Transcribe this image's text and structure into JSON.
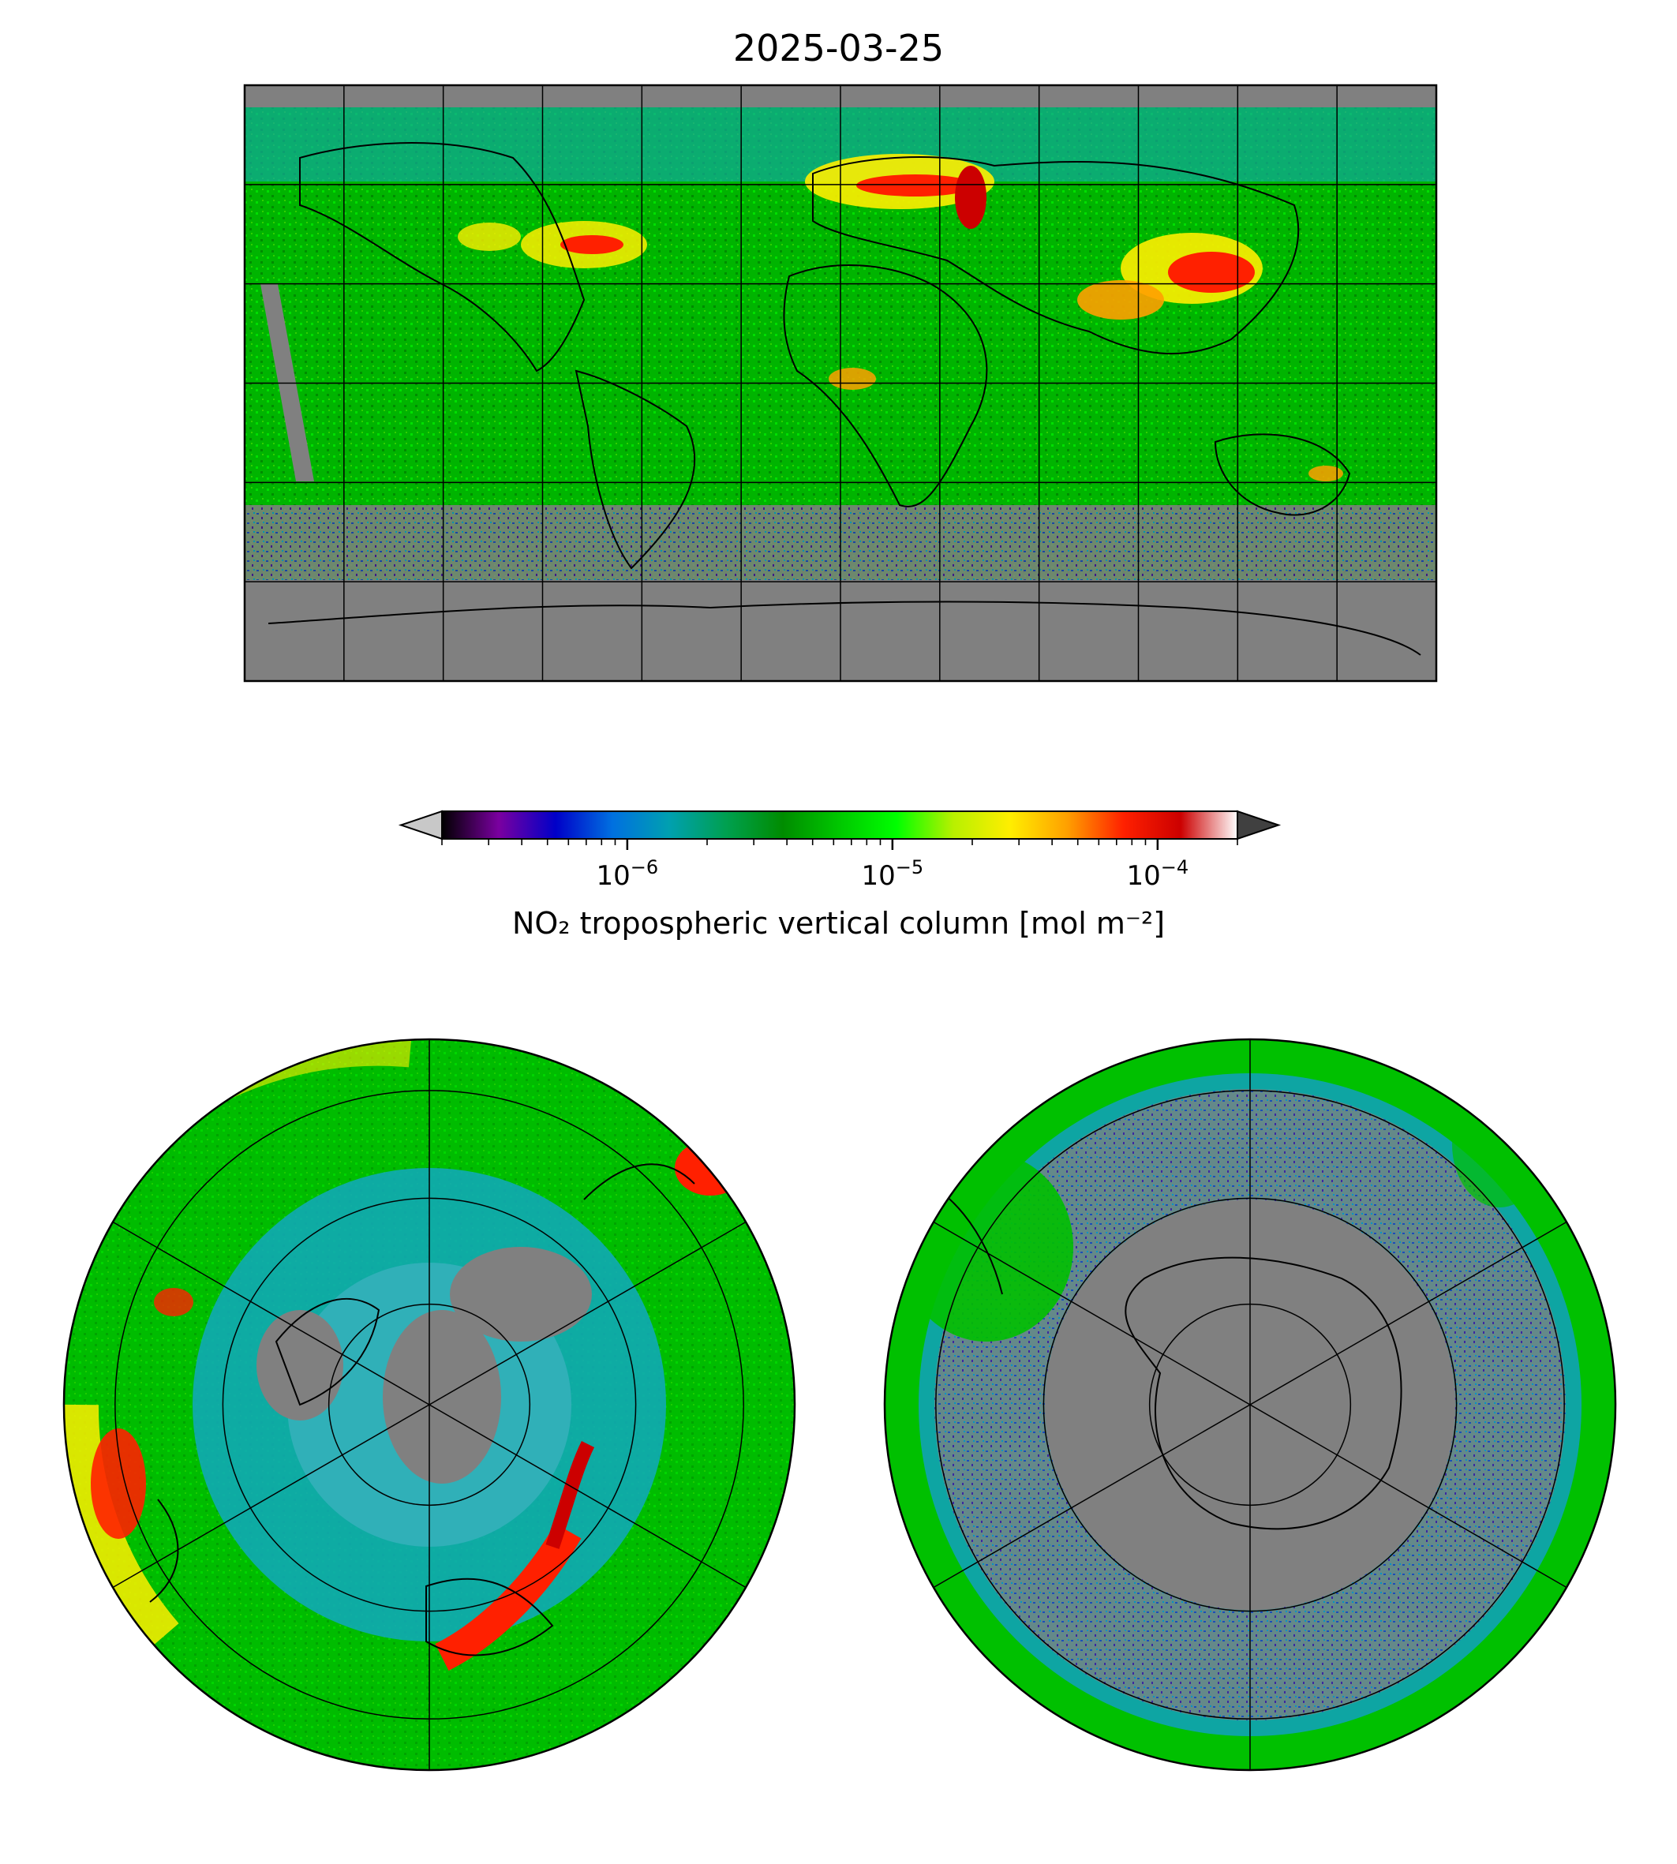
{
  "title": "2025-03-25",
  "colorbar": {
    "label": "NO₂ tropospheric vertical column [mol m⁻²]",
    "scale": "log",
    "range": [
      2e-07,
      0.0002
    ],
    "extend": "both",
    "major_ticks": [
      {
        "value": 1e-06,
        "base": "10",
        "exp": "−6"
      },
      {
        "value": 1e-05,
        "base": "10",
        "exp": "−5"
      },
      {
        "value": 0.0001,
        "base": "10",
        "exp": "−4"
      }
    ],
    "colors": [
      "#000000",
      "#7a00a0",
      "#0000c8",
      "#0070e0",
      "#00a0b0",
      "#00a050",
      "#008c00",
      "#00c800",
      "#00ff00",
      "#b8f000",
      "#ffee00",
      "#ffa000",
      "#ff2000",
      "#cc0000",
      "#ffffff"
    ],
    "under_color": "#c8c8c8",
    "over_color": "#404040"
  },
  "maps": {
    "projection_main": "PlateCarree",
    "projection_north": "NorthPolarStereo",
    "projection_south": "SouthPolarStereo",
    "no_data_color": "#808080",
    "gridlines": true
  }
}
